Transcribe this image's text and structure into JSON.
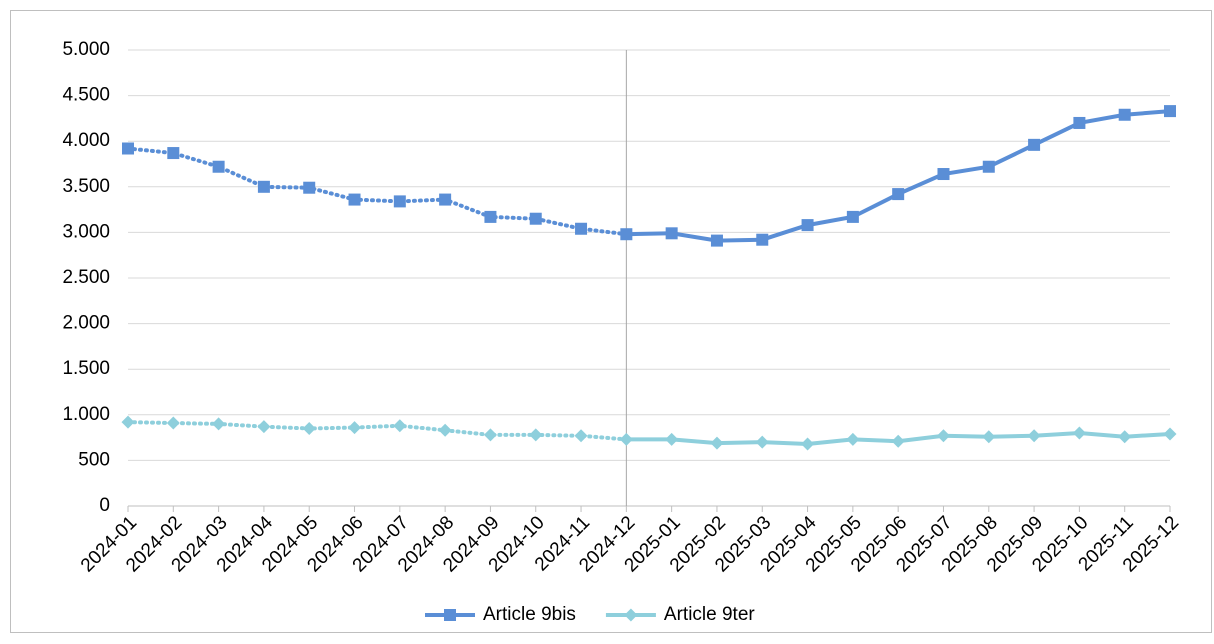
{
  "chart_data": {
    "type": "line",
    "categories": [
      "2024-01",
      "2024-02",
      "2024-03",
      "2024-04",
      "2024-05",
      "2024-06",
      "2024-07",
      "2024-08",
      "2024-09",
      "2024-10",
      "2024-11",
      "2024-12",
      "2025-01",
      "2025-02",
      "2025-03",
      "2025-04",
      "2025-05",
      "2025-06",
      "2025-07",
      "2025-08",
      "2025-09",
      "2025-10",
      "2025-11",
      "2025-12"
    ],
    "series": [
      {
        "name": "Article 9bis",
        "color": "#5a8ed6",
        "marker": "square",
        "values": [
          3920,
          3870,
          3720,
          3500,
          3490,
          3360,
          3340,
          3360,
          3170,
          3150,
          3040,
          2980,
          2990,
          2910,
          2920,
          3080,
          3170,
          3420,
          3640,
          3720,
          3960,
          4200,
          4290,
          4330
        ]
      },
      {
        "name": "Article 9ter",
        "color": "#8ecfdc",
        "marker": "diamond",
        "values": [
          920,
          910,
          900,
          870,
          850,
          860,
          880,
          830,
          780,
          780,
          770,
          730,
          730,
          690,
          700,
          680,
          730,
          710,
          770,
          760,
          770,
          800,
          760,
          790
        ]
      }
    ],
    "dotted_before": "2024-12",
    "ylim": [
      0,
      5000
    ],
    "yticks": [
      0,
      500,
      {
        "value": 1000,
        "label": "1.000"
      },
      {
        "value": 1500,
        "label": "1.500"
      },
      {
        "value": 2000,
        "label": "2.000"
      },
      {
        "value": 2500,
        "label": "2.500"
      },
      {
        "value": 3000,
        "label": "3.000"
      },
      {
        "value": 3500,
        "label": "3.500"
      },
      {
        "value": 4000,
        "label": "4.000"
      },
      {
        "value": 4500,
        "label": "4.500"
      },
      {
        "value": 5000,
        "label": "5.000"
      }
    ],
    "grid": true,
    "legend": "bottom"
  }
}
